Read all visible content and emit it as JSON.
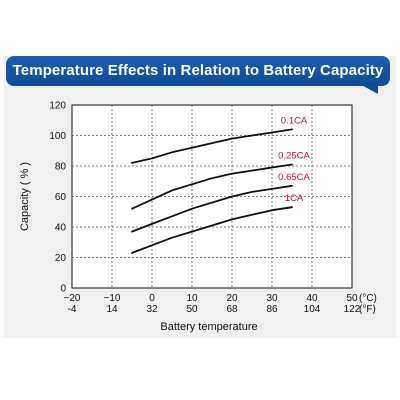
{
  "header": {
    "title": "Temperature Effects in Relation to Battery Capacity",
    "banner_color": "#1557a6"
  },
  "chart_data": {
    "type": "line",
    "title": "Temperature Effects in Relation to Battery Capacity",
    "xlabel": "Battery temperature",
    "ylabel": "Capacity ( % )",
    "xlim": [
      -20,
      50
    ],
    "ylim": [
      0,
      120
    ],
    "x_ticks": [
      {
        "value": -20,
        "celsius": "−20",
        "fahrenheit": "-4"
      },
      {
        "value": -10,
        "celsius": "−10",
        "fahrenheit": "14"
      },
      {
        "value": 0,
        "celsius": "0",
        "fahrenheit": "32"
      },
      {
        "value": 10,
        "celsius": "10",
        "fahrenheit": "50"
      },
      {
        "value": 20,
        "celsius": "20",
        "fahrenheit": "68"
      },
      {
        "value": 30,
        "celsius": "30",
        "fahrenheit": "86"
      },
      {
        "value": 40,
        "celsius": "40",
        "fahrenheit": "104"
      },
      {
        "value": 50,
        "celsius": "50",
        "fahrenheit": "122"
      }
    ],
    "x_unit_celsius": "(°C)",
    "x_unit_fahrenheit": "(°F)",
    "y_ticks": [
      0,
      20,
      40,
      60,
      80,
      100,
      120
    ],
    "grid": true,
    "line_color": "#111111",
    "label_color": "#c8102e",
    "series": [
      {
        "name": "0.1CA",
        "x": [
          -5,
          0,
          5,
          10,
          15,
          20,
          25,
          30,
          35
        ],
        "y": [
          82,
          85,
          89,
          92,
          95,
          98,
          100,
          102,
          104
        ]
      },
      {
        "name": "0.25CA",
        "x": [
          -5,
          0,
          5,
          10,
          15,
          20,
          25,
          30,
          35
        ],
        "y": [
          52,
          58,
          64,
          68,
          72,
          75,
          77,
          79,
          81
        ]
      },
      {
        "name": "0.65CA",
        "x": [
          -5,
          0,
          5,
          10,
          15,
          20,
          25,
          30,
          35
        ],
        "y": [
          37,
          42,
          47,
          52,
          56,
          60,
          63,
          65,
          67
        ]
      },
      {
        "name": "1CA",
        "x": [
          -5,
          0,
          5,
          10,
          15,
          20,
          25,
          30,
          35
        ],
        "y": [
          23,
          28,
          33,
          37,
          41,
          45,
          48,
          51,
          53
        ]
      }
    ]
  }
}
